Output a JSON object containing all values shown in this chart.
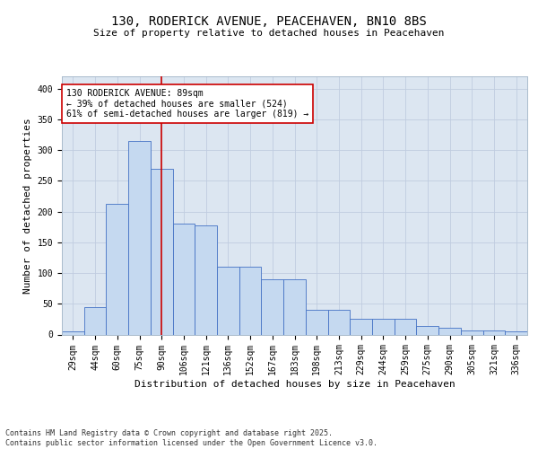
{
  "title": "130, RODERICK AVENUE, PEACEHAVEN, BN10 8BS",
  "subtitle": "Size of property relative to detached houses in Peacehaven",
  "xlabel": "Distribution of detached houses by size in Peacehaven",
  "ylabel": "Number of detached properties",
  "categories": [
    "29sqm",
    "44sqm",
    "60sqm",
    "75sqm",
    "90sqm",
    "106sqm",
    "121sqm",
    "136sqm",
    "152sqm",
    "167sqm",
    "183sqm",
    "198sqm",
    "213sqm",
    "229sqm",
    "244sqm",
    "259sqm",
    "275sqm",
    "290sqm",
    "305sqm",
    "321sqm",
    "336sqm"
  ],
  "values": [
    5,
    44,
    212,
    315,
    270,
    180,
    178,
    110,
    110,
    90,
    90,
    40,
    40,
    25,
    25,
    25,
    14,
    11,
    7,
    7,
    5
  ],
  "bar_color": "#c5d9f0",
  "bar_edge_color": "#4472c4",
  "vline_x_index": 4,
  "vline_color": "#cc0000",
  "annotation_text": "130 RODERICK AVENUE: 89sqm\n← 39% of detached houses are smaller (524)\n61% of semi-detached houses are larger (819) →",
  "annotation_box_color": "#ffffff",
  "annotation_box_edge": "#cc0000",
  "grid_color": "#c0cce0",
  "background_color": "#dce6f1",
  "footer_text": "Contains HM Land Registry data © Crown copyright and database right 2025.\nContains public sector information licensed under the Open Government Licence v3.0.",
  "ylim": [
    0,
    420
  ],
  "yticks": [
    0,
    50,
    100,
    150,
    200,
    250,
    300,
    350,
    400
  ],
  "title_fontsize": 10,
  "subtitle_fontsize": 8,
  "tick_fontsize": 7,
  "ylabel_fontsize": 8,
  "xlabel_fontsize": 8,
  "annotation_fontsize": 7,
  "footer_fontsize": 6
}
